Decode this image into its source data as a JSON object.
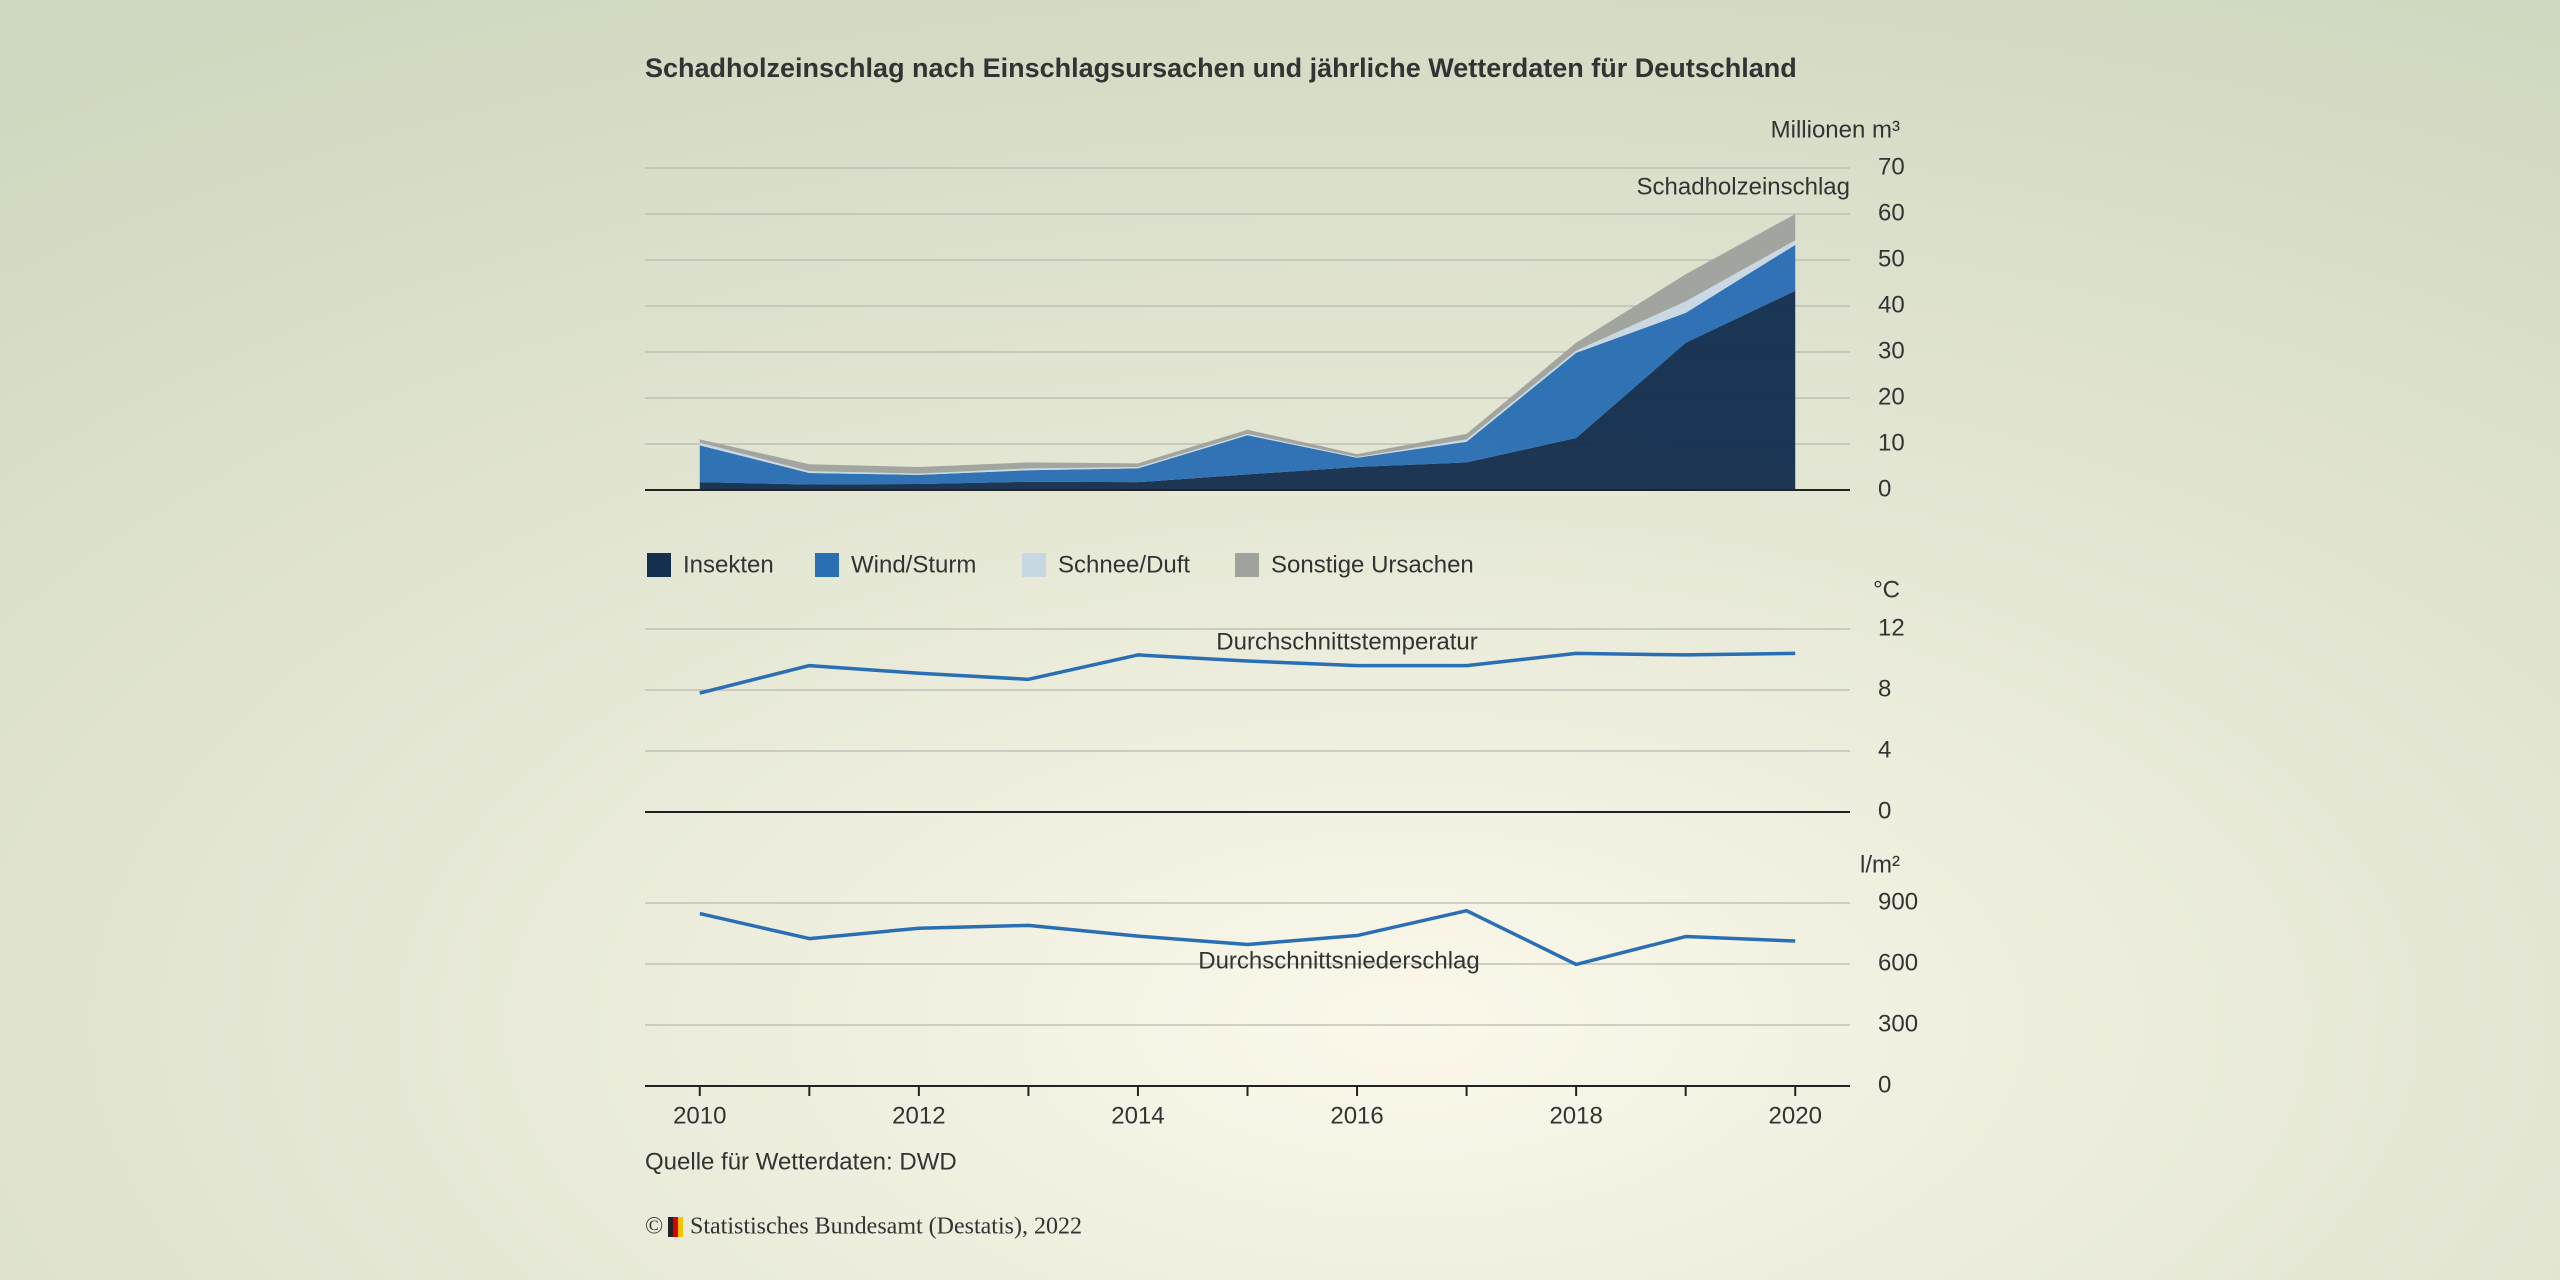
{
  "chart_data": [
    {
      "type": "stacked_area",
      "title": "Schadholzeinschlag nach Einschlagsursachen und jährliche Wetterdaten für Deutschland",
      "y_label": "Millionen m³",
      "annotation": "Schadholzeinschlag",
      "x": [
        2010,
        2011,
        2012,
        2013,
        2014,
        2015,
        2016,
        2017,
        2018,
        2019,
        2020
      ],
      "xlim": [
        2009.5,
        2020.5
      ],
      "series": [
        {
          "name": "Insekten",
          "color": "#15304f",
          "values": [
            1.7,
            1.2,
            1.3,
            1.8,
            1.7,
            3.4,
            5.0,
            6.0,
            11.3,
            32.0,
            43.3
          ]
        },
        {
          "name": "Wind/Sturm",
          "color": "#2a6eb4",
          "values": [
            8.0,
            2.5,
            2.0,
            2.5,
            3.0,
            8.5,
            2.0,
            4.5,
            18.5,
            6.5,
            10.0
          ]
        },
        {
          "name": "Schnee/Duft",
          "color": "#c8d8e3",
          "values": [
            0.6,
            0.4,
            0.3,
            0.4,
            0.3,
            0.3,
            0.2,
            0.5,
            0.5,
            2.5,
            1.0
          ]
        },
        {
          "name": "Sonstige Ursachen",
          "color": "#a0a39d",
          "values": [
            0.7,
            1.5,
            1.4,
            1.3,
            0.8,
            0.9,
            0.6,
            1.2,
            1.7,
            5.9,
            5.7
          ]
        }
      ],
      "ylim": [
        0,
        70
      ],
      "yticks": [
        0,
        10,
        20,
        30,
        40,
        50,
        60,
        70
      ],
      "grid": true,
      "legend": "bottom-left"
    },
    {
      "type": "line",
      "y_label": "°C",
      "annotation": "Durchschnittstemperatur",
      "x": [
        2010,
        2011,
        2012,
        2013,
        2014,
        2015,
        2016,
        2017,
        2018,
        2019,
        2020
      ],
      "xlim": [
        2009.5,
        2020.5
      ],
      "series": [
        {
          "name": "Durchschnittstemperatur",
          "color": "#2a6eb4",
          "values": [
            7.8,
            9.6,
            9.1,
            8.7,
            10.3,
            9.9,
            9.6,
            9.6,
            10.4,
            10.3,
            10.4
          ]
        }
      ],
      "ylim": [
        0,
        12
      ],
      "yticks": [
        0,
        4,
        8,
        12
      ],
      "grid": true
    },
    {
      "type": "line",
      "y_label": "l/m²",
      "annotation": "Durchschnittsniederschlag",
      "x": [
        2010,
        2011,
        2012,
        2013,
        2014,
        2015,
        2016,
        2017,
        2018,
        2019,
        2020
      ],
      "xlim": [
        2009.5,
        2020.5
      ],
      "xticks": [
        2010,
        2012,
        2014,
        2016,
        2018,
        2020
      ],
      "series": [
        {
          "name": "Durchschnittsniederschlag",
          "color": "#2a6eb4",
          "values": [
            848,
            725,
            776,
            790,
            737,
            696,
            740,
            862,
            598,
            735,
            713
          ]
        }
      ],
      "ylim": [
        0,
        900
      ],
      "yticks": [
        0,
        300,
        600,
        900
      ],
      "grid": true
    }
  ],
  "source": "Quelle für Wetterdaten: DWD",
  "copyright_symbol": "©",
  "copyright": "Statistisches Bundesamt (Destatis), 2022"
}
